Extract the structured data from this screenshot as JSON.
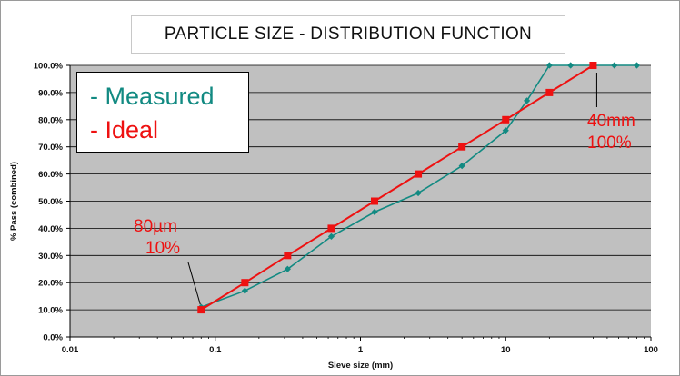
{
  "chart_data": {
    "type": "line",
    "title": "PARTICLE SIZE - DISTRIBUTION FUNCTION",
    "xlabel": "Sieve size (mm)",
    "ylabel": "% Pass (combined)",
    "x_scale": "log",
    "xlim": [
      0.01,
      100
    ],
    "ylim": [
      0,
      100
    ],
    "x_ticks": [
      "0.01",
      "0.1",
      "1",
      "10",
      "100"
    ],
    "y_ticks": [
      "0.0%",
      "10.0%",
      "20.0%",
      "30.0%",
      "40.0%",
      "50.0%",
      "60.0%",
      "70.0%",
      "80.0%",
      "90.0%",
      "100.0%"
    ],
    "grid": "horizontal",
    "legend": {
      "placement": "top-left"
    },
    "series": [
      {
        "name": "- Measured",
        "color": "#128a82",
        "marker": "diamond",
        "x": [
          0.08,
          0.16,
          0.315,
          0.63,
          1.25,
          2.5,
          5,
          10,
          14,
          20,
          28,
          40,
          56,
          80
        ],
        "y": [
          11,
          17,
          25,
          37,
          46,
          53,
          63,
          76,
          87,
          100,
          100,
          100,
          100,
          100
        ]
      },
      {
        "name": "- Ideal",
        "color": "#ee1111",
        "marker": "square",
        "x": [
          0.08,
          0.16,
          0.315,
          0.63,
          1.25,
          2.5,
          5,
          10,
          20,
          40
        ],
        "y": [
          10,
          20,
          30,
          40,
          50,
          60,
          70,
          80,
          90,
          100
        ]
      }
    ],
    "annotations": [
      {
        "lines": [
          "80µm",
          "10%"
        ],
        "x": 0.08,
        "y": 10
      },
      {
        "lines": [
          "40mm",
          "100%"
        ],
        "x": 40,
        "y": 100
      }
    ],
    "colors": {
      "plot_bg": "#c0c0c0",
      "gridline": "#000000"
    }
  }
}
